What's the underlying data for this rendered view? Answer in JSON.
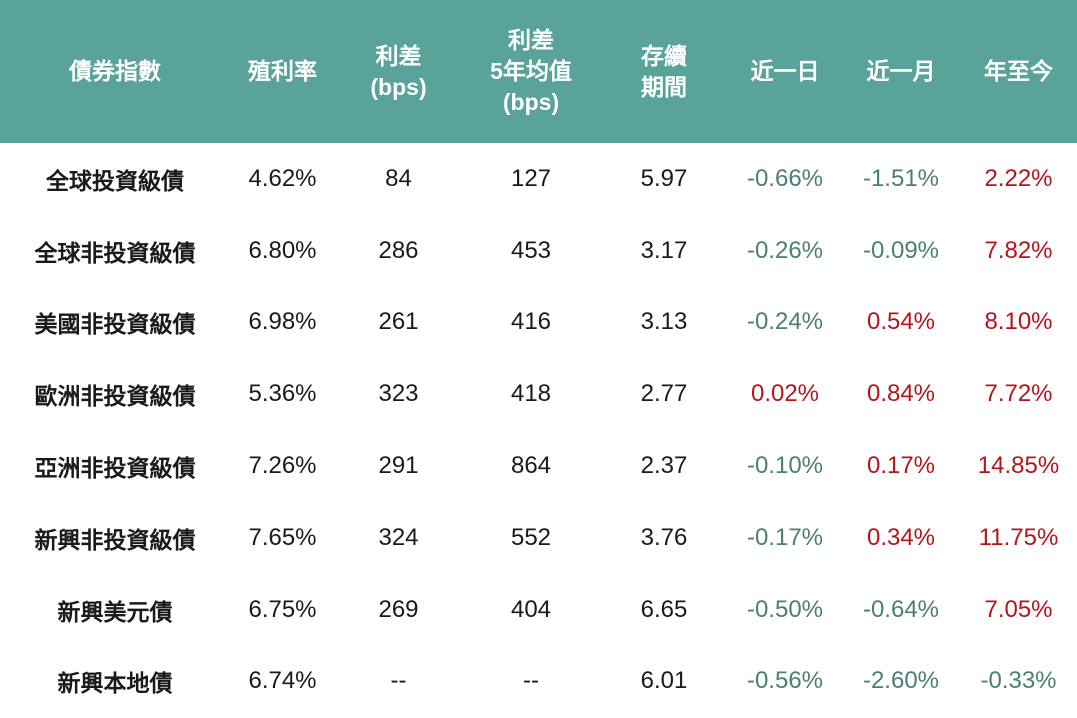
{
  "table": {
    "header": [
      [
        "債券指數"
      ],
      [
        "殖利率"
      ],
      [
        "利差",
        "(bps)"
      ],
      [
        "利差",
        "5年均值",
        "(bps)"
      ],
      [
        "存續",
        "期間"
      ],
      [
        "近一日"
      ],
      [
        "近一月"
      ],
      [
        "年至今"
      ]
    ],
    "rows": [
      [
        "全球投資級債",
        "4.62%",
        "84",
        "127",
        "5.97",
        "-0.66%",
        "-1.51%",
        "2.22%"
      ],
      [
        "全球非投資級債",
        "6.80%",
        "286",
        "453",
        "3.17",
        "-0.26%",
        "-0.09%",
        "7.82%"
      ],
      [
        "美國非投資級債",
        "6.98%",
        "261",
        "416",
        "3.13",
        "-0.24%",
        "0.54%",
        "8.10%"
      ],
      [
        "歐洲非投資級債",
        "5.36%",
        "323",
        "418",
        "2.77",
        "0.02%",
        "0.84%",
        "7.72%"
      ],
      [
        "亞洲非投資級債",
        "7.26%",
        "291",
        "864",
        "2.37",
        "-0.10%",
        "0.17%",
        "14.85%"
      ],
      [
        "新興非投資級債",
        "7.65%",
        "324",
        "552",
        "3.76",
        "-0.17%",
        "0.34%",
        "11.75%"
      ],
      [
        "新興美元債",
        "6.75%",
        "269",
        "404",
        "6.65",
        "-0.50%",
        "-0.64%",
        "7.05%"
      ],
      [
        "新興本地債",
        "6.74%",
        "--",
        "--",
        "6.01",
        "-0.56%",
        "-2.60%",
        "-0.33%"
      ]
    ],
    "change_colors": {
      "positive": "#b3151b",
      "negative": "#4c7f73"
    }
  }
}
